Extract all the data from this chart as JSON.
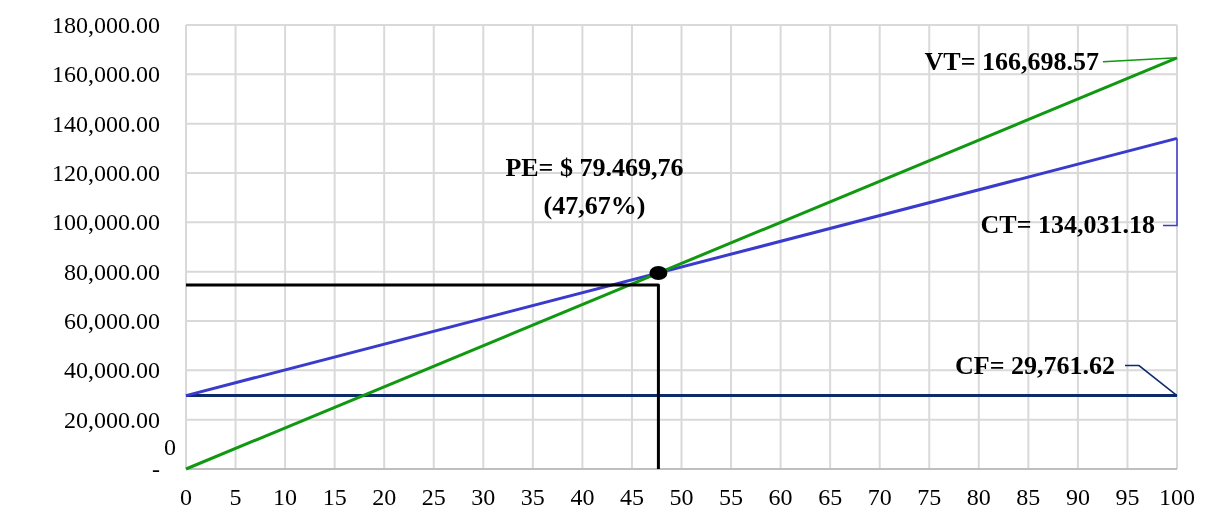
{
  "chart_data": {
    "type": "line",
    "xlim": [
      0,
      100
    ],
    "ylim": [
      0,
      180000
    ],
    "xticks": [
      0,
      5,
      10,
      15,
      20,
      25,
      30,
      35,
      40,
      45,
      50,
      55,
      60,
      65,
      70,
      75,
      80,
      85,
      90,
      95,
      100
    ],
    "yticks": [
      {
        "value": 0,
        "label": "-"
      },
      {
        "value": 20000,
        "label": "20,000.00"
      },
      {
        "value": 40000,
        "label": "40,000.00"
      },
      {
        "value": 60000,
        "label": "60,000.00"
      },
      {
        "value": 80000,
        "label": "80,000.00"
      },
      {
        "value": 100000,
        "label": "100,000.00"
      },
      {
        "value": 120000,
        "label": "120,000.00"
      },
      {
        "value": 140000,
        "label": "140,000.00"
      },
      {
        "value": 160000,
        "label": "160,000.00"
      },
      {
        "value": 180000,
        "label": "180,000.00"
      }
    ],
    "grid": true,
    "series": [
      {
        "color": "#0d2a6b",
        "x": [
          0,
          100
        ],
        "values": [
          29761.62,
          29761.62
        ]
      },
      {
        "color": "#3a3acc",
        "x": [
          0,
          100
        ],
        "values": [
          29761.62,
          134031.18
        ]
      },
      {
        "color": "#109910",
        "x": [
          0,
          100
        ],
        "values": [
          0,
          166698.57
        ]
      },
      {
        "color": "#000000",
        "x": [
          0,
          47.67,
          47.67
        ],
        "values": [
          74600,
          74600,
          0
        ]
      },
      {
        "type": "scatter",
        "color": "#000000",
        "marker": "circle",
        "x": [
          47.67
        ],
        "values": [
          79469.76
        ]
      }
    ],
    "annotations": [
      {
        "text": "VT= 166,698.57",
        "x": 100,
        "y": 166698.57
      },
      {
        "text": "CT= 134,031.18",
        "x": 100,
        "y": 134031.18
      },
      {
        "text": "CF= 29,761.62",
        "x": 100,
        "y": 29761.62
      },
      {
        "text": "PE= $ 79.469,76\n(47,67%)",
        "x": 47.67,
        "y": 79469.76
      },
      {
        "text": "0",
        "x": 0,
        "y": 0
      }
    ]
  }
}
